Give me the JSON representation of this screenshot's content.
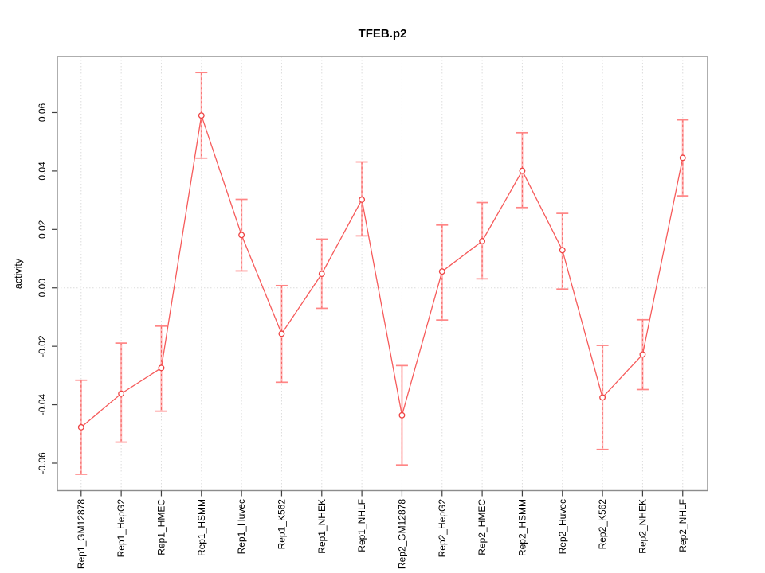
{
  "chart_data": {
    "type": "line",
    "title": "TFEB.p2",
    "xlabel": "",
    "ylabel": "activity",
    "categories": [
      "Rep1_GM12878",
      "Rep1_HepG2",
      "Rep1_HMEC",
      "Rep1_HSMM",
      "Rep1_Huvec",
      "Rep1_K562",
      "Rep1_NHEK",
      "Rep1_NHLF",
      "Rep2_GM12878",
      "Rep2_HepG2",
      "Rep2_HMEC",
      "Rep2_HSMM",
      "Rep2_Huvec",
      "Rep2_K562",
      "Rep2_NHEK",
      "Rep2_NHLF"
    ],
    "series": [
      {
        "name": "activity",
        "values": [
          -0.0477,
          -0.0362,
          -0.0274,
          0.059,
          0.0181,
          -0.0157,
          0.0048,
          0.0302,
          -0.0436,
          0.0056,
          0.016,
          0.0401,
          0.0129,
          -0.0375,
          -0.0228,
          0.0445
        ],
        "ci_upper": [
          -0.0316,
          -0.0189,
          -0.0131,
          0.0737,
          0.0303,
          0.0008,
          0.0167,
          0.0431,
          -0.0266,
          0.0215,
          0.0292,
          0.0531,
          0.0255,
          -0.0197,
          -0.0109,
          0.0575
        ],
        "ci_lower": [
          -0.0638,
          -0.0528,
          -0.0422,
          0.0444,
          0.0058,
          -0.0323,
          -0.007,
          0.0178,
          -0.0606,
          -0.011,
          0.0031,
          0.0275,
          -0.0004,
          -0.0553,
          -0.0348,
          0.0315
        ]
      }
    ],
    "y_ticks": [
      -0.06,
      -0.04,
      -0.02,
      0,
      0.02,
      0.04,
      0.06
    ],
    "y_tick_labels": [
      "-0.06",
      "-0.04",
      "-0.02",
      "0.00",
      "0.02",
      "0.04",
      "0.06"
    ],
    "ylim": [
      -0.0694,
      0.0792
    ],
    "grid": "dotted vertical line at each category; dotted horizontal line at y=0",
    "legend": "none",
    "marker": "open-circle",
    "colors": {
      "series_line": "#f65b5b",
      "point_stroke": "#ee4343",
      "error_bar_solid": "#ffb6b6",
      "error_bar_dash": "#f56060",
      "error_cap": "#ff8585",
      "grid": "#dcdcdc",
      "box": "#8c8c8c",
      "tick": "#3f3f3f",
      "text": "#000000",
      "background": "#ffffff"
    }
  }
}
